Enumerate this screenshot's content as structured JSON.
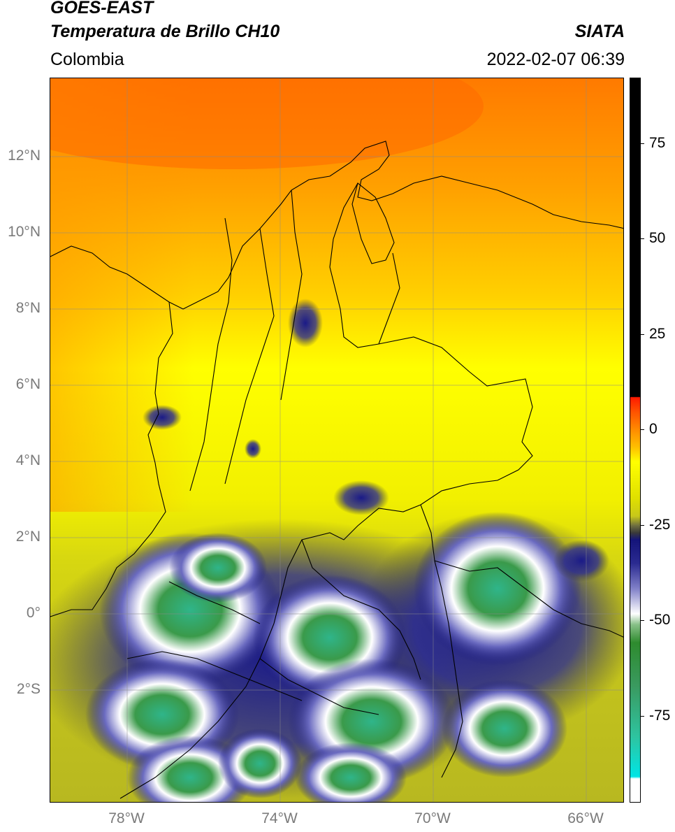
{
  "header": {
    "satellite": "GOES-EAST",
    "product": "Temperatura de Brillo CH10",
    "region": "Colombia",
    "agency": "SIATA",
    "timestamp": "2022-02-07 06:39"
  },
  "map": {
    "lat_labels": [
      "12°N",
      "10°N",
      "8°N",
      "6°N",
      "4°N",
      "2°N",
      "0°",
      "2°S"
    ],
    "lon_labels": [
      "78°W",
      "74°W",
      "70°W",
      "66°W"
    ],
    "extent": {
      "lon_min": -79.8,
      "lon_max": -64.8,
      "lat_min": -5.3,
      "lat_max": 13.7
    }
  },
  "colorbar": {
    "ticks": [
      "75",
      "50",
      "25",
      "0",
      "-25",
      "-50",
      "-75"
    ],
    "colors": {
      "hot": "#000000",
      "red": "#ff1a00",
      "orange": "#ff8a00",
      "yellow": "#ffff00",
      "olive": "#c8c81a",
      "dark": "#3a3a3a",
      "navy": "#14147a",
      "white": "#ffffff",
      "green": "#2e8b2e",
      "teal": "#2ec4a0",
      "cyan": "#00e5e5"
    }
  }
}
